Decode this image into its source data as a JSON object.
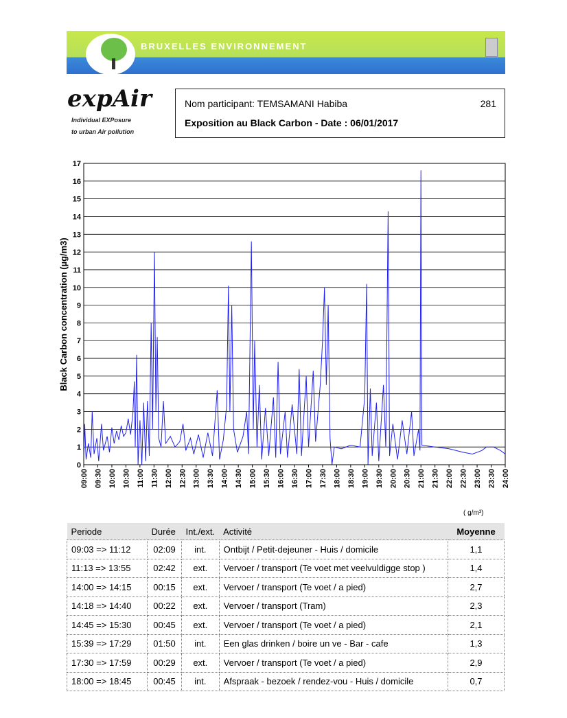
{
  "banner": {
    "text": "BRUXELLES ENVIRONNEMENT"
  },
  "logo": {
    "name": "expAir",
    "tagline1": "Individual EXPosure",
    "tagline2": "to urban Air pollution"
  },
  "info": {
    "participant_label": "Nom participant:",
    "participant_name": "TEMSAMANI Habiba",
    "participant_id": "281",
    "title": "Exposition au Black Carbon - Date : 06/01/2017"
  },
  "chart_data": {
    "type": "line",
    "title": "Exposition au Black Carbon - Date : 06/01/2017",
    "ylabel": "Black Carbon concentration (µg/m3)",
    "xlabel": "",
    "ylim": [
      0,
      17
    ],
    "yticks": [
      "0",
      "1",
      "2",
      "3",
      "4",
      "5",
      "6",
      "7",
      "8",
      "9",
      "10",
      "11",
      "12",
      "13",
      "14",
      "15",
      "16",
      "17"
    ],
    "xticks": [
      "09:00",
      "09:30",
      "10:00",
      "10:30",
      "11:00",
      "11:30",
      "12:00",
      "12:30",
      "13:00",
      "13:30",
      "14:00",
      "14:30",
      "15:00",
      "15:30",
      "16:00",
      "16:30",
      "17:00",
      "17:30",
      "18:00",
      "18:30",
      "19:00",
      "19:30",
      "20:00",
      "20:30",
      "21:00",
      "21:30",
      "22:00",
      "22:30",
      "23:00",
      "23:30",
      "24:00"
    ],
    "grid": "horizontal",
    "series": [
      {
        "name": "Black Carbon",
        "color": "#2222ee",
        "points": [
          [
            "09:00",
            0.5
          ],
          [
            "09:02",
            2.3
          ],
          [
            "09:05",
            0.3
          ],
          [
            "09:10",
            1.2
          ],
          [
            "09:15",
            0.4
          ],
          [
            "09:18",
            3.0
          ],
          [
            "09:22",
            0.6
          ],
          [
            "09:28",
            1.5
          ],
          [
            "09:32",
            0.2
          ],
          [
            "09:38",
            2.3
          ],
          [
            "09:42",
            0.8
          ],
          [
            "09:50",
            1.6
          ],
          [
            "09:55",
            0.7
          ],
          [
            "10:00",
            2.1
          ],
          [
            "10:05",
            1.2
          ],
          [
            "10:10",
            1.9
          ],
          [
            "10:15",
            1.4
          ],
          [
            "10:20",
            2.2
          ],
          [
            "10:25",
            1.6
          ],
          [
            "10:30",
            1.8
          ],
          [
            "10:35",
            2.6
          ],
          [
            "10:40",
            1.7
          ],
          [
            "10:45",
            2.9
          ],
          [
            "10:48",
            4.7
          ],
          [
            "10:50",
            1.0
          ],
          [
            "10:53",
            6.2
          ],
          [
            "10:56",
            0.0
          ],
          [
            "11:00",
            2.5
          ],
          [
            "11:04",
            0.0
          ],
          [
            "11:08",
            3.5
          ],
          [
            "11:12",
            0.2
          ],
          [
            "11:16",
            3.6
          ],
          [
            "11:20",
            0.5
          ],
          [
            "11:24",
            8.0
          ],
          [
            "11:27",
            2.0
          ],
          [
            "11:31",
            12.0
          ],
          [
            "11:34",
            3.0
          ],
          [
            "11:37",
            7.2
          ],
          [
            "11:40",
            1.5
          ],
          [
            "11:45",
            1.0
          ],
          [
            "11:50",
            3.6
          ],
          [
            "11:55",
            1.2
          ],
          [
            "12:05",
            1.6
          ],
          [
            "12:15",
            1.0
          ],
          [
            "12:25",
            1.3
          ],
          [
            "12:32",
            2.3
          ],
          [
            "12:38",
            0.8
          ],
          [
            "12:48",
            1.5
          ],
          [
            "12:55",
            0.6
          ],
          [
            "13:05",
            1.7
          ],
          [
            "13:15",
            0.4
          ],
          [
            "13:25",
            1.8
          ],
          [
            "13:35",
            0.5
          ],
          [
            "13:45",
            4.2
          ],
          [
            "13:50",
            0.3
          ],
          [
            "13:58",
            1.4
          ],
          [
            "14:05",
            3.3
          ],
          [
            "14:09",
            10.1
          ],
          [
            "14:12",
            3.0
          ],
          [
            "14:16",
            9.0
          ],
          [
            "14:20",
            2.0
          ],
          [
            "14:28",
            0.7
          ],
          [
            "14:40",
            1.6
          ],
          [
            "14:48",
            3.0
          ],
          [
            "14:52",
            0.6
          ],
          [
            "14:58",
            12.6
          ],
          [
            "15:02",
            2.0
          ],
          [
            "15:05",
            7.0
          ],
          [
            "15:10",
            1.0
          ],
          [
            "15:15",
            4.5
          ],
          [
            "15:20",
            0.3
          ],
          [
            "15:28",
            3.2
          ],
          [
            "15:35",
            0.5
          ],
          [
            "15:45",
            3.8
          ],
          [
            "15:50",
            0.4
          ],
          [
            "15:55",
            5.8
          ],
          [
            "16:00",
            0.6
          ],
          [
            "16:10",
            3.0
          ],
          [
            "16:15",
            0.4
          ],
          [
            "16:25",
            3.4
          ],
          [
            "16:35",
            0.6
          ],
          [
            "16:40",
            5.4
          ],
          [
            "16:45",
            0.5
          ],
          [
            "16:55",
            5.0
          ],
          [
            "17:00",
            1.0
          ],
          [
            "17:10",
            5.3
          ],
          [
            "17:15",
            1.3
          ],
          [
            "17:25",
            4.5
          ],
          [
            "17:30",
            7.0
          ],
          [
            "17:34",
            10.0
          ],
          [
            "17:38",
            4.5
          ],
          [
            "17:42",
            9.0
          ],
          [
            "17:46",
            1.5
          ],
          [
            "17:50",
            0.0
          ],
          [
            "17:55",
            1.0
          ],
          [
            "18:10",
            0.9
          ],
          [
            "18:30",
            1.1
          ],
          [
            "18:50",
            1.0
          ],
          [
            "19:00",
            3.8
          ],
          [
            "19:04",
            10.2
          ],
          [
            "19:07",
            0.0
          ],
          [
            "19:12",
            4.3
          ],
          [
            "19:16",
            0.5
          ],
          [
            "19:25",
            3.5
          ],
          [
            "19:30",
            0.2
          ],
          [
            "19:40",
            4.5
          ],
          [
            "19:45",
            1.0
          ],
          [
            "19:50",
            14.3
          ],
          [
            "19:53",
            0.5
          ],
          [
            "20:00",
            2.3
          ],
          [
            "20:10",
            0.3
          ],
          [
            "20:20",
            2.5
          ],
          [
            "20:30",
            0.6
          ],
          [
            "20:40",
            3.0
          ],
          [
            "20:45",
            0.5
          ],
          [
            "20:55",
            2.0
          ],
          [
            "20:58",
            0.8
          ],
          [
            "21:00",
            16.6
          ],
          [
            "21:02",
            1.1
          ],
          [
            "21:30",
            1.0
          ],
          [
            "22:00",
            0.9
          ],
          [
            "22:30",
            0.7
          ],
          [
            "22:50",
            0.6
          ],
          [
            "23:10",
            0.8
          ],
          [
            "23:20",
            1.0
          ],
          [
            "23:35",
            1.0
          ],
          [
            "23:50",
            0.8
          ],
          [
            "24:00",
            0.6
          ]
        ]
      }
    ]
  },
  "table": {
    "unit": "( g/m³)",
    "headers": [
      "Periode",
      "Durée",
      "Int./ext.",
      "Activité",
      "Moyenne"
    ],
    "rows": [
      [
        "09:03 => 11:12",
        "02:09",
        "int.",
        "Ontbijt / Petit-dejeuner - Huis / domicile",
        "1,1"
      ],
      [
        "11:13 => 13:55",
        "02:42",
        "ext.",
        "Vervoer / transport (Te voet met veelvuldigge stop )",
        "1,4"
      ],
      [
        "14:00 => 14:15",
        "00:15",
        "ext.",
        "Vervoer / transport (Te voet / a pied)",
        "2,7"
      ],
      [
        "14:18 => 14:40",
        "00:22",
        "ext.",
        "Vervoer / transport (Tram)",
        "2,3"
      ],
      [
        "14:45 => 15:30",
        "00:45",
        "ext.",
        "Vervoer / transport (Te voet / a pied)",
        "2,1"
      ],
      [
        "15:39 => 17:29",
        "01:50",
        "int.",
        "Een glas drinken / boire un ve - Bar - cafe",
        "1,3"
      ],
      [
        "17:30 => 17:59",
        "00:29",
        "ext.",
        "Vervoer / transport (Te voet / a pied)",
        "2,9"
      ],
      [
        "18:00 => 18:45",
        "00:45",
        "int.",
        "Afspraak - bezoek / rendez-vou - Huis / domicile",
        "0,7"
      ]
    ]
  }
}
